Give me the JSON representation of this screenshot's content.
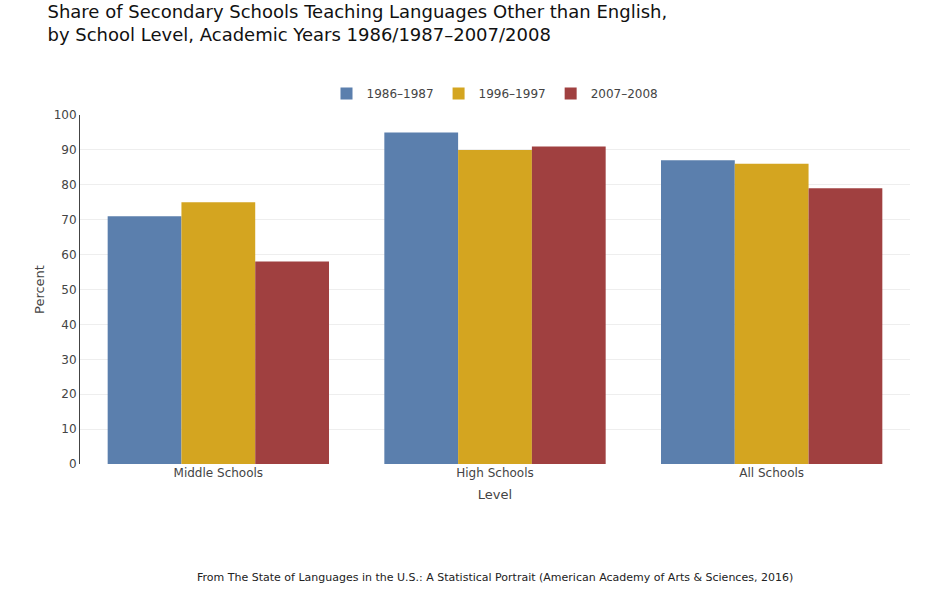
{
  "chart_data": {
    "type": "bar",
    "title": "Share of Secondary Schools Teaching Languages Other than English,\nby School Level, Academic Years 1986/1987–2007/2008",
    "xlabel": "Level",
    "ylabel": "Percent",
    "categories": [
      "Middle Schools",
      "High Schools",
      "All Schools"
    ],
    "series": [
      {
        "name": "1986–1987",
        "color": "#5b7fad",
        "values": [
          71,
          95,
          87
        ]
      },
      {
        "name": "1996–1997",
        "color": "#d4a520",
        "values": [
          75,
          90,
          86
        ]
      },
      {
        "name": "2007–2008",
        "color": "#a04040",
        "values": [
          58,
          91,
          79
        ]
      }
    ],
    "ylim": [
      0,
      100
    ],
    "yticks": [
      0,
      10,
      20,
      30,
      40,
      50,
      60,
      70,
      80,
      90,
      100
    ],
    "grid": true,
    "legend": "top",
    "annotations": [
      "From The State of Languages in the U.S.: A Statistical Portrait (American Academy of Arts & Sciences, 2016)"
    ]
  }
}
